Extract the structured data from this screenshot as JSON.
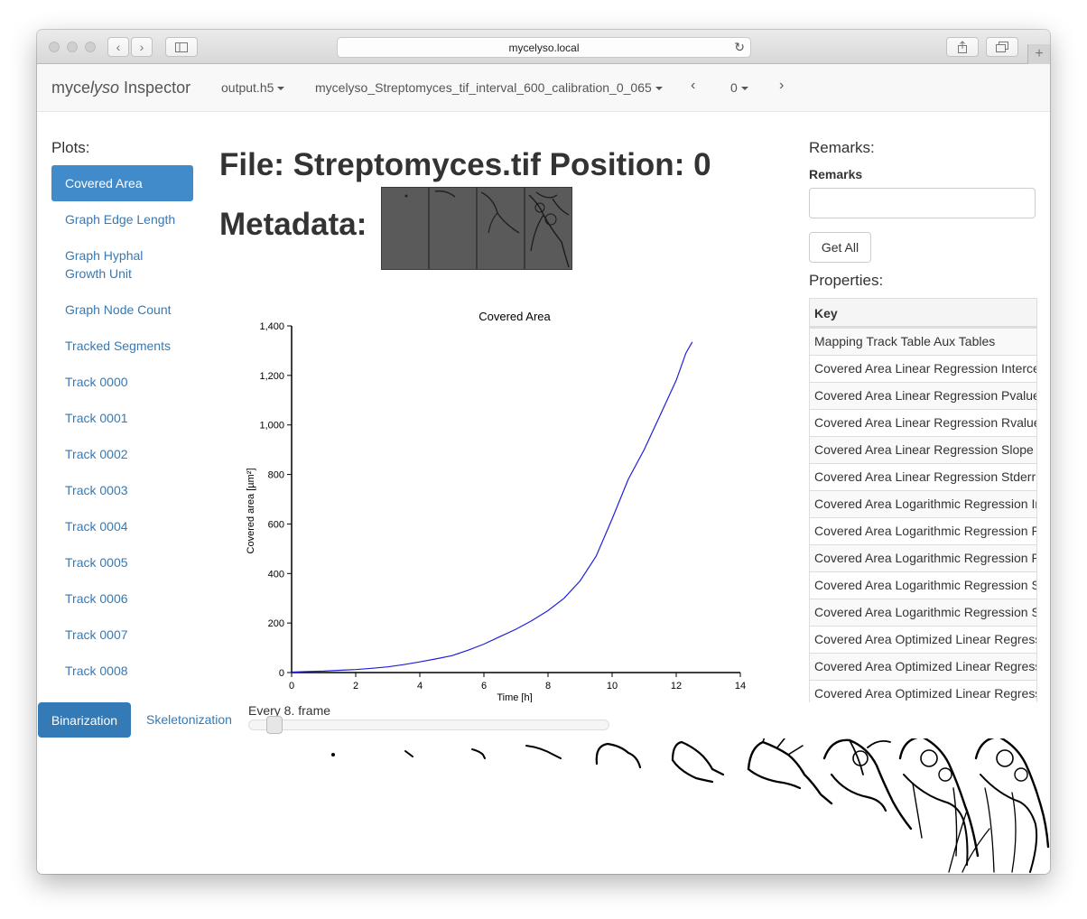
{
  "browser": {
    "url": "mycelyso.local"
  },
  "navbar": {
    "brand_prefix": "myce",
    "brand_italic": "lyso",
    "brand_suffix": " Inspector",
    "file_dropdown": "output.h5",
    "dataset_dropdown": "mycelyso_Streptomyces_tif_interval_600_calibration_0_065",
    "prev_label": "‹",
    "position_dropdown": "0",
    "next_label": "›"
  },
  "sidebar": {
    "title": "Plots:",
    "items": [
      {
        "label": "Covered Area"
      },
      {
        "label": "Graph Edge Length"
      },
      {
        "label": "Graph Hyphal Growth Unit"
      },
      {
        "label": "Graph Node Count"
      },
      {
        "label": "Tracked Segments"
      },
      {
        "label": "Track 0000"
      },
      {
        "label": "Track 0001"
      },
      {
        "label": "Track 0002"
      },
      {
        "label": "Track 0003"
      },
      {
        "label": "Track 0004"
      },
      {
        "label": "Track 0005"
      },
      {
        "label": "Track 0006"
      },
      {
        "label": "Track 0007"
      },
      {
        "label": "Track 0008"
      }
    ]
  },
  "main": {
    "file_heading": "File: Streptomyces.tif Position: 0",
    "metadata_heading": "Metadata:"
  },
  "chart_data": {
    "type": "line",
    "title": "Covered Area",
    "xlabel": "Time [h]",
    "ylabel": "Covered area [µm²]",
    "xlim": [
      0,
      14
    ],
    "ylim": [
      0,
      1400
    ],
    "xticks": [
      0,
      2,
      4,
      6,
      8,
      10,
      12,
      14
    ],
    "yticks": [
      "0",
      "200",
      "400",
      "600",
      "800",
      "1,000",
      "1,200",
      "1,400"
    ],
    "grid": false,
    "line_color": "#1f1fdd",
    "series": [
      {
        "x": [
          0,
          0.5,
          1,
          1.5,
          2,
          2.5,
          3,
          3.5,
          4,
          4.5,
          5,
          5.5,
          6,
          6.5,
          7,
          7.5,
          8,
          8.5,
          9,
          9.5,
          10,
          10.5,
          11,
          11.5,
          12,
          12.3,
          12.5
        ],
        "y": [
          2,
          4,
          6,
          9,
          12,
          17,
          23,
          32,
          43,
          55,
          68,
          90,
          115,
          145,
          175,
          210,
          250,
          300,
          370,
          470,
          620,
          780,
          900,
          1040,
          1180,
          1290,
          1335
        ]
      }
    ]
  },
  "remarks": {
    "title": "Remarks:",
    "label": "Remarks",
    "input_value": "",
    "button": "Get All"
  },
  "properties": {
    "title": "Properties:",
    "header": "Key",
    "rows": [
      "Mapping Track Table Aux Tables",
      "Covered Area Linear Regression Intercept",
      "Covered Area Linear Regression Pvalue",
      "Covered Area Linear Regression Rvalue",
      "Covered Area Linear Regression Slope",
      "Covered Area Linear Regression Stderr",
      "Covered Area Logarithmic Regression Intercept",
      "Covered Area Logarithmic Regression Pvalue",
      "Covered Area Logarithmic Regression Rvalue",
      "Covered Area Logarithmic Regression Slope",
      "Covered Area Logarithmic Regression Stderr",
      "Covered Area Optimized Linear Regression Begin",
      "Covered Area Optimized Linear Regression End",
      "Covered Area Optimized Linear Regression Intercept"
    ]
  },
  "bottom": {
    "binarization_button": "Binarization",
    "skeletonization_link": "Skeletonization",
    "slider_label": "Every 8. frame"
  }
}
